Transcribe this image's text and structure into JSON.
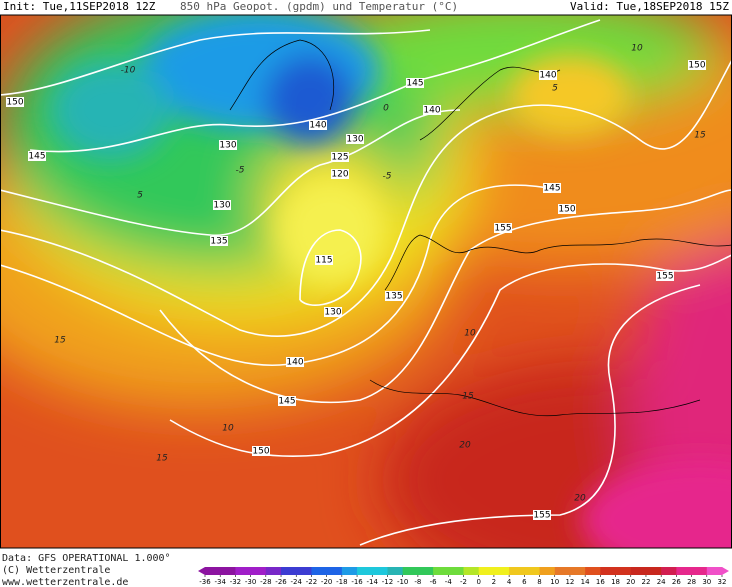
{
  "header": {
    "init": "Init: Tue,11SEP2018 12Z",
    "title": "850 hPa Geopot. (gpdm) und Temperatur (°C)",
    "valid": "Valid: Tue,18SEP2018 15Z"
  },
  "geopotential_labels": [
    150,
    145,
    130,
    140,
    130,
    125,
    120,
    145,
    140,
    140,
    150,
    145,
    150,
    155,
    155,
    130,
    135,
    115,
    130,
    135,
    140,
    145,
    150,
    155
  ],
  "temperature_labels": [
    -10,
    -5,
    0,
    -5,
    5,
    10,
    5,
    10,
    15,
    10,
    15,
    20,
    20,
    15,
    15
  ],
  "footer": {
    "data": "Data: GFS OPERATIONAL 1.000°",
    "copyright": "(C) Wetterzentrale",
    "url": "www.wetterzentrale.de"
  },
  "colorbar": {
    "ticks": [
      -36,
      -34,
      -32,
      -30,
      -28,
      -26,
      -24,
      -22,
      -20,
      -18,
      -16,
      -14,
      -12,
      -10,
      -8,
      -6,
      -4,
      -2,
      0,
      2,
      4,
      6,
      8,
      10,
      12,
      14,
      16,
      18,
      20,
      22,
      24,
      26,
      28,
      30,
      32
    ]
  }
}
